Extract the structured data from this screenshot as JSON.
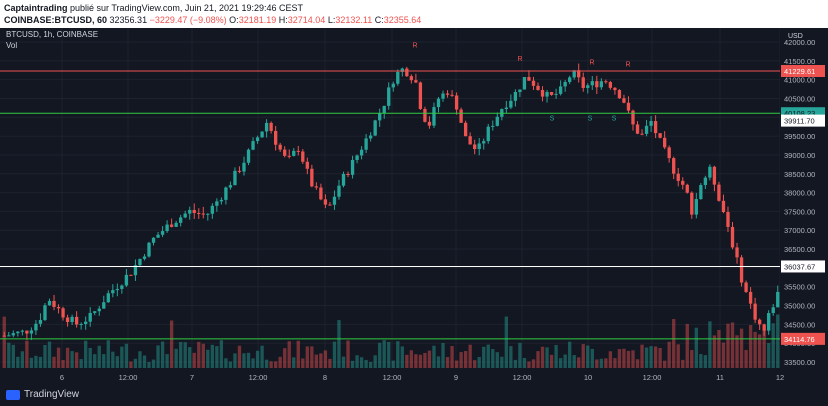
{
  "header": {
    "author": "Captaintrading",
    "published": "publié sur TradingView.com, Juin 21, 2021 19:29:46 CEST",
    "symbol": "COINBASE:BTCUSD, 60",
    "last": "32356.31",
    "change": "−3229.47 (−9.08%)",
    "o_label": "O:",
    "o": "32181.19",
    "h_label": "H:",
    "h": "32714.04",
    "l_label": "L:",
    "l": "32132.11",
    "c_label": "C:",
    "c": "32355.64"
  },
  "legend": {
    "symbol_line": "BTCUSD, 1h, COINBASE",
    "vol": "Vol"
  },
  "price_axis": {
    "currency": "USD",
    "ticks": [
      "42000.00",
      "41500.00",
      "41000.00",
      "40500.00",
      "40000.00",
      "39500.00",
      "39000.00",
      "38500.00",
      "38000.00",
      "37500.00",
      "37000.00",
      "36500.00",
      "36000.00",
      "35500.00",
      "35000.00",
      "34500.00",
      "34000.00",
      "33500.00"
    ],
    "labels": [
      {
        "text": "41229.61",
        "value": 41229.61,
        "bg": "#ef5350",
        "fg": "#ffffff"
      },
      {
        "text": "40108.23",
        "value": 40108.23,
        "bg": "#26a69a",
        "fg": "#131722"
      },
      {
        "text": "39911.70",
        "value": 39911.7,
        "bg": "#ffffff",
        "fg": "#131722"
      },
      {
        "text": "36037.67",
        "value": 36037.67,
        "bg": "#ffffff",
        "fg": "#131722"
      },
      {
        "text": "34114.76",
        "value": 34114.76,
        "bg": "#ef5350",
        "fg": "#ffffff"
      }
    ]
  },
  "time_axis": [
    "6",
    "12:00",
    "7",
    "12:00",
    "8",
    "12:00",
    "9",
    "12:00",
    "10",
    "12:00",
    "11",
    "12"
  ],
  "horizontal_lines": [
    {
      "value": 41229.61,
      "color": "#ef5350"
    },
    {
      "value": 40108.23,
      "color": "#2ecc40"
    },
    {
      "value": 36037.67,
      "color": "#ffffff"
    },
    {
      "value": 34114.76,
      "color": "#2ecc40"
    }
  ],
  "annotations": [
    {
      "text": "R",
      "color": "#ef5350"
    },
    {
      "text": "R",
      "color": "#ef5350"
    },
    {
      "text": "R",
      "color": "#ef5350"
    },
    {
      "text": "R",
      "color": "#ef5350"
    },
    {
      "text": "S",
      "color": "#26a69a"
    },
    {
      "text": "S",
      "color": "#26a69a"
    },
    {
      "text": "S",
      "color": "#26a69a"
    }
  ],
  "footer": {
    "brand": "TradingView"
  },
  "colors": {
    "up": "#26a69a",
    "down": "#ef5350",
    "bg": "#131722",
    "grid": "#1e222d"
  }
}
